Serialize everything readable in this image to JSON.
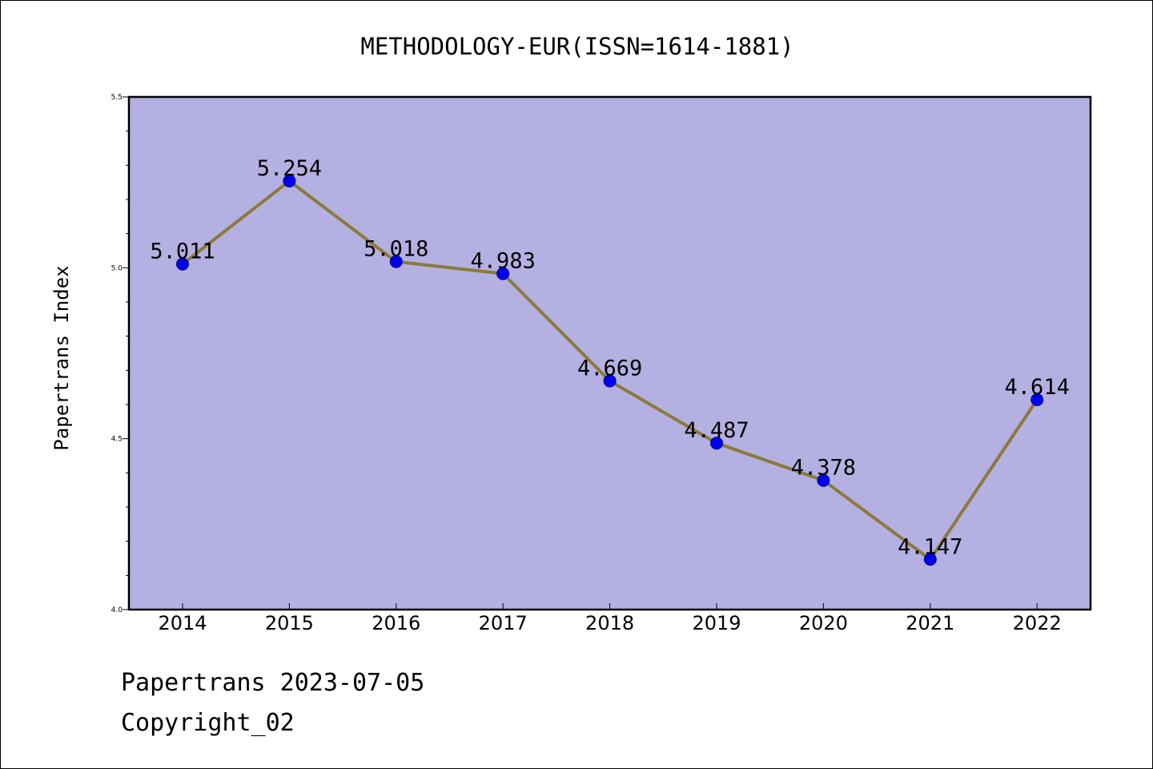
{
  "footer": {
    "line1": "Papertrans 2023-07-05",
    "line2": "Copyright_02"
  },
  "chart_data": {
    "type": "line",
    "title": "METHODOLOGY-EUR(ISSN=1614-1881)",
    "xlabel": "",
    "ylabel": "Papertrans Index",
    "categories": [
      "2014",
      "2015",
      "2016",
      "2017",
      "2018",
      "2019",
      "2020",
      "2021",
      "2022"
    ],
    "values": [
      5.011,
      5.254,
      5.018,
      4.983,
      4.669,
      4.487,
      4.378,
      4.147,
      4.614
    ],
    "data_labels": [
      "5.011",
      "5.254",
      "5.018",
      "4.983",
      "4.669",
      "4.487",
      "4.378",
      "4.147",
      "4.614"
    ],
    "ylim": [
      4.0,
      5.5
    ],
    "yticks": [
      "4.0",
      "4.5",
      "5.0",
      "5.5"
    ],
    "grid": false,
    "colors": {
      "plot_background": "#b5b0e2",
      "line": "#8b7a3b",
      "marker": "#0000ee",
      "marker_edge": "#00008b"
    }
  }
}
